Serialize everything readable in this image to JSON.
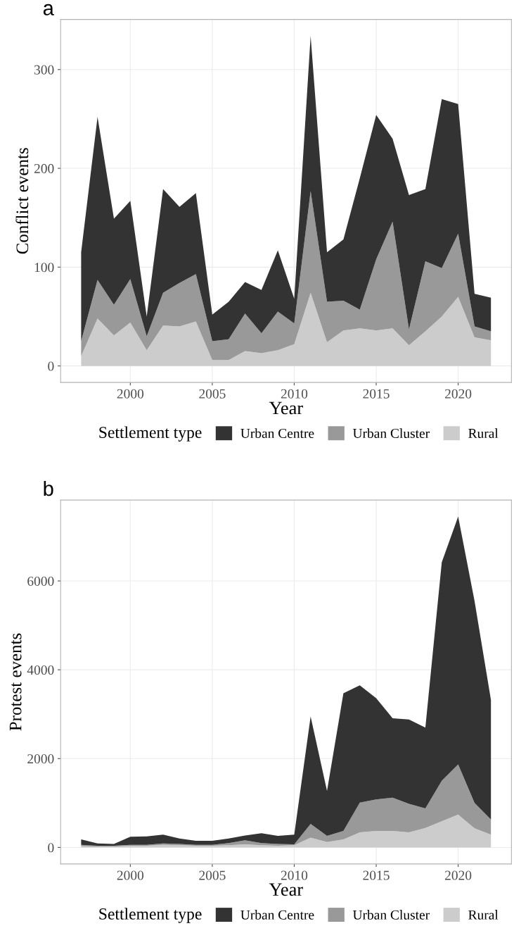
{
  "chart_data": [
    {
      "type": "area",
      "title": "a",
      "xlabel": "Year",
      "ylabel": "Conflict events",
      "legend_title": "Settlement type",
      "stacked": true,
      "legend": "bottom",
      "grid": true,
      "x": [
        1997,
        1998,
        1999,
        2000,
        2001,
        2002,
        2003,
        2004,
        2005,
        2006,
        2007,
        2008,
        2009,
        2010,
        2011,
        2012,
        2013,
        2014,
        2015,
        2016,
        2017,
        2018,
        2019,
        2020,
        2021,
        2022
      ],
      "series": [
        {
          "name": "Rural",
          "color": "#cccccc",
          "values": [
            10,
            48,
            31,
            44,
            16,
            41,
            40,
            45,
            6,
            6,
            15,
            13,
            16,
            22,
            74,
            24,
            36,
            38,
            36,
            38,
            21,
            35,
            50,
            70,
            29,
            26
          ]
        },
        {
          "name": "Urban Cluster",
          "color": "#999999",
          "values": [
            15,
            39,
            31,
            44,
            14,
            33,
            44,
            48,
            19,
            21,
            38,
            20,
            39,
            21,
            103,
            41,
            30,
            19,
            72,
            108,
            16,
            71,
            49,
            64,
            11,
            9
          ]
        },
        {
          "name": "Urban Centre",
          "color": "#333333",
          "values": [
            90,
            165,
            87,
            79,
            20,
            105,
            77,
            82,
            27,
            38,
            32,
            44,
            62,
            25,
            157,
            50,
            62,
            133,
            146,
            84,
            136,
            73,
            171,
            131,
            33,
            34
          ]
        }
      ],
      "xlim": [
        1995.75,
        2023.25
      ],
      "xticks": [
        2000,
        2005,
        2010,
        2015,
        2020
      ],
      "ylim": [
        -16.7,
        350.7
      ],
      "yticks": [
        0,
        100,
        200,
        300
      ]
    },
    {
      "type": "area",
      "title": "b",
      "xlabel": "Year",
      "ylabel": "Protest events",
      "legend_title": "Settlement type",
      "stacked": true,
      "legend": "bottom",
      "grid": true,
      "x": [
        1997,
        1998,
        1999,
        2000,
        2001,
        2002,
        2003,
        2004,
        2005,
        2006,
        2007,
        2008,
        2009,
        2010,
        2011,
        2012,
        2013,
        2014,
        2015,
        2016,
        2017,
        2018,
        2019,
        2020,
        2021,
        2022
      ],
      "series": [
        {
          "name": "Rural",
          "color": "#cccccc",
          "values": [
            30,
            20,
            20,
            40,
            40,
            60,
            50,
            40,
            40,
            50,
            70,
            50,
            40,
            50,
            220,
            120,
            180,
            340,
            370,
            370,
            340,
            440,
            590,
            740,
            430,
            290
          ]
        },
        {
          "name": "Urban Cluster",
          "color": "#999999",
          "values": [
            30,
            20,
            20,
            20,
            20,
            30,
            30,
            20,
            20,
            50,
            90,
            50,
            40,
            20,
            310,
            140,
            190,
            670,
            710,
            750,
            640,
            440,
            910,
            1130,
            570,
            340
          ]
        },
        {
          "name": "Urban Centre",
          "color": "#333333",
          "values": [
            120,
            50,
            40,
            180,
            190,
            200,
            120,
            90,
            90,
            100,
            110,
            220,
            180,
            220,
            2420,
            1010,
            3100,
            2640,
            2280,
            1790,
            1900,
            1820,
            4920,
            5580,
            4550,
            2690
          ]
        }
      ],
      "xlim": [
        1995.75,
        2023.25
      ],
      "xticks": [
        2000,
        2005,
        2010,
        2015,
        2020
      ],
      "ylim": [
        -372,
        7822
      ],
      "yticks": [
        0,
        2000,
        4000,
        6000
      ]
    }
  ]
}
